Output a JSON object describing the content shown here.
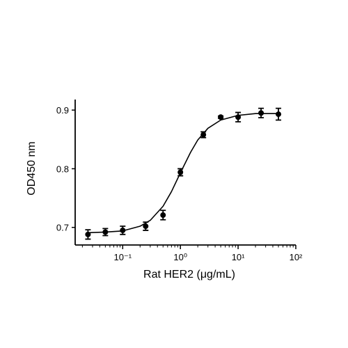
{
  "chart_data": {
    "type": "scatter",
    "x_label": "Rat HER2 (μg/mL)",
    "y_label": "OD450 nm",
    "xlog": true,
    "xlim": [
      0.015,
      100
    ],
    "ylim": [
      0.67,
      0.918
    ],
    "xticks": [
      {
        "value": 0.1,
        "label": "10⁻¹"
      },
      {
        "value": 1,
        "label": "10⁰"
      },
      {
        "value": 10,
        "label": "10¹"
      },
      {
        "value": 100,
        "label": "10²"
      }
    ],
    "xminorticks": [
      0.02,
      0.03,
      0.04,
      0.05,
      0.06,
      0.07,
      0.08,
      0.09,
      0.2,
      0.3,
      0.4,
      0.5,
      0.6,
      0.7,
      0.8,
      0.9,
      2,
      3,
      4,
      5,
      6,
      7,
      8,
      9,
      20,
      30,
      40,
      50,
      60,
      70,
      80,
      90
    ],
    "yticks": [
      0.7,
      0.8,
      0.9
    ],
    "series": [
      {
        "type": "scatter",
        "color": "#000000",
        "x": [
          0.025,
          0.05,
          0.1,
          0.25,
          0.5,
          1,
          2.5,
          5,
          10,
          25,
          50
        ],
        "values": [
          0.688,
          0.692,
          0.695,
          0.702,
          0.721,
          0.794,
          0.858,
          0.888,
          0.888,
          0.895,
          0.893
        ],
        "errors": [
          0.008,
          0.006,
          0.007,
          0.007,
          0.008,
          0.006,
          0.005,
          0.002,
          0.008,
          0.008,
          0.01
        ]
      },
      {
        "type": "line",
        "color": "#000000",
        "x": [
          0.025,
          0.05,
          0.1,
          0.2,
          0.3,
          0.5,
          0.7,
          1,
          1.5,
          2,
          3,
          5,
          10,
          20,
          50
        ],
        "values": [
          0.691,
          0.692,
          0.694,
          0.702,
          0.712,
          0.736,
          0.761,
          0.793,
          0.828,
          0.849,
          0.869,
          0.883,
          0.891,
          0.894,
          0.894
        ]
      }
    ]
  }
}
